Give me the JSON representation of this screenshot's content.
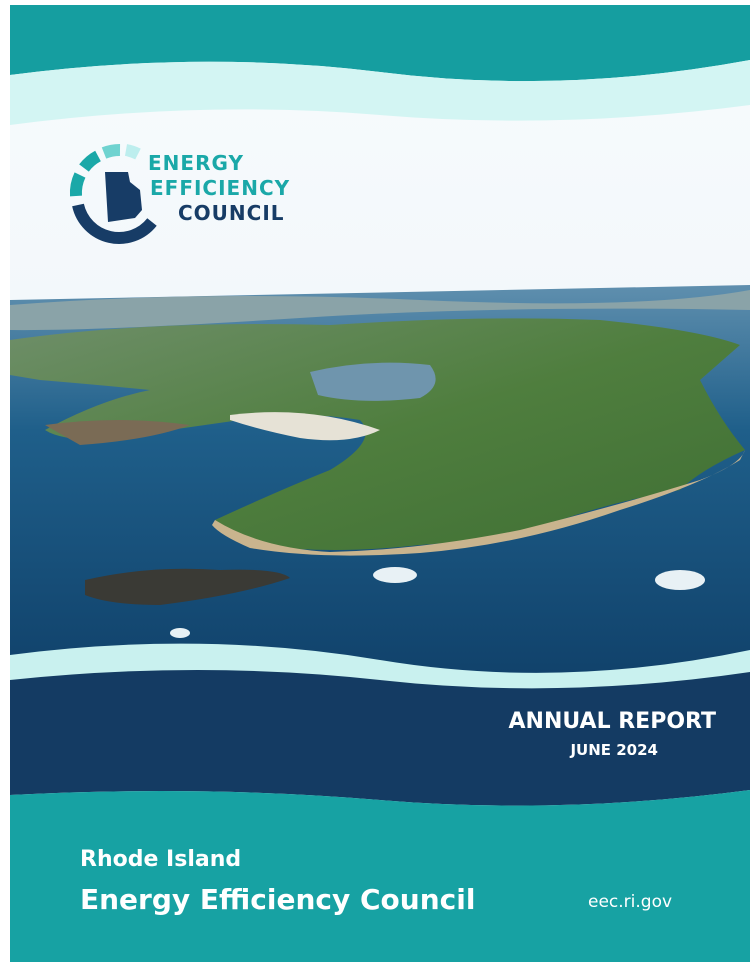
{
  "logo": {
    "lines": [
      "ENERGY",
      "EFFICIENCY",
      "COUNCIL"
    ]
  },
  "report": {
    "title": "ANNUAL REPORT",
    "date": "JUNE 2024"
  },
  "footer": {
    "subtitle": "Rhode Island",
    "name": "Energy Efficiency Council",
    "url": "eec.ri.gov"
  }
}
